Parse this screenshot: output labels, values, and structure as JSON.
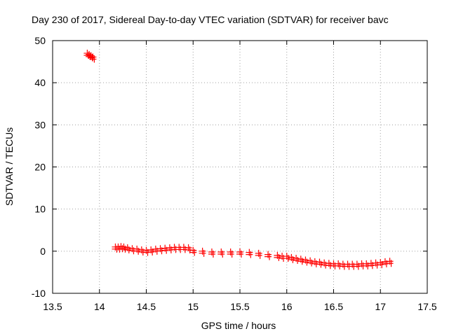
{
  "chart_data": {
    "type": "scatter",
    "title": "Day 230 of 2017, Sidereal Day-to-day VTEC variation (SDTVAR) for receiver bavc",
    "xlabel": "GPS time / hours",
    "ylabel": "SDTVAR / TECUs",
    "xlim": [
      13.5,
      17.5
    ],
    "ylim": [
      -10,
      50
    ],
    "xticks": [
      "13.5",
      "14",
      "14.5",
      "15",
      "15.5",
      "16",
      "16.5",
      "17",
      "17.5"
    ],
    "xtick_values": [
      13.5,
      14,
      14.5,
      15,
      15.5,
      16,
      16.5,
      17,
      17.5
    ],
    "yticks": [
      "-10",
      "0",
      "10",
      "20",
      "30",
      "40",
      "50"
    ],
    "ytick_values": [
      -10,
      0,
      10,
      20,
      30,
      40,
      50
    ],
    "grid": true,
    "marker": "plus",
    "color": "#ff0000",
    "series": [
      {
        "name": "SDTVAR",
        "x": [
          13.87,
          13.89,
          13.91,
          13.93,
          14.17,
          14.2,
          14.23,
          14.26,
          14.3,
          14.35,
          14.4,
          14.45,
          14.5,
          14.55,
          14.6,
          14.65,
          14.7,
          14.75,
          14.8,
          14.85,
          14.9,
          14.95,
          15.0,
          15.1,
          15.2,
          15.3,
          15.4,
          15.5,
          15.6,
          15.7,
          15.8,
          15.9,
          15.95,
          16.0,
          16.05,
          16.1,
          16.15,
          16.2,
          16.25,
          16.3,
          16.35,
          16.4,
          16.45,
          16.5,
          16.55,
          16.6,
          16.65,
          16.7,
          16.75,
          16.8,
          16.85,
          16.9,
          16.95,
          17.0,
          17.05,
          17.1
        ],
        "y": [
          47.0,
          46.7,
          46.4,
          46.1,
          1.0,
          1.0,
          1.1,
          1.0,
          0.8,
          0.6,
          0.5,
          0.3,
          0.2,
          0.3,
          0.5,
          0.6,
          0.7,
          0.8,
          0.9,
          0.9,
          0.9,
          0.8,
          0.2,
          0.0,
          -0.2,
          -0.2,
          -0.2,
          -0.2,
          -0.3,
          -0.5,
          -0.8,
          -1.0,
          -1.2,
          -1.2,
          -1.5,
          -1.7,
          -1.9,
          -2.1,
          -2.3,
          -2.5,
          -2.6,
          -2.8,
          -2.9,
          -3.0,
          -3.0,
          -3.1,
          -3.1,
          -3.1,
          -3.1,
          -3.0,
          -3.0,
          -2.9,
          -2.8,
          -2.7,
          -2.5,
          -2.4
        ]
      }
    ]
  }
}
